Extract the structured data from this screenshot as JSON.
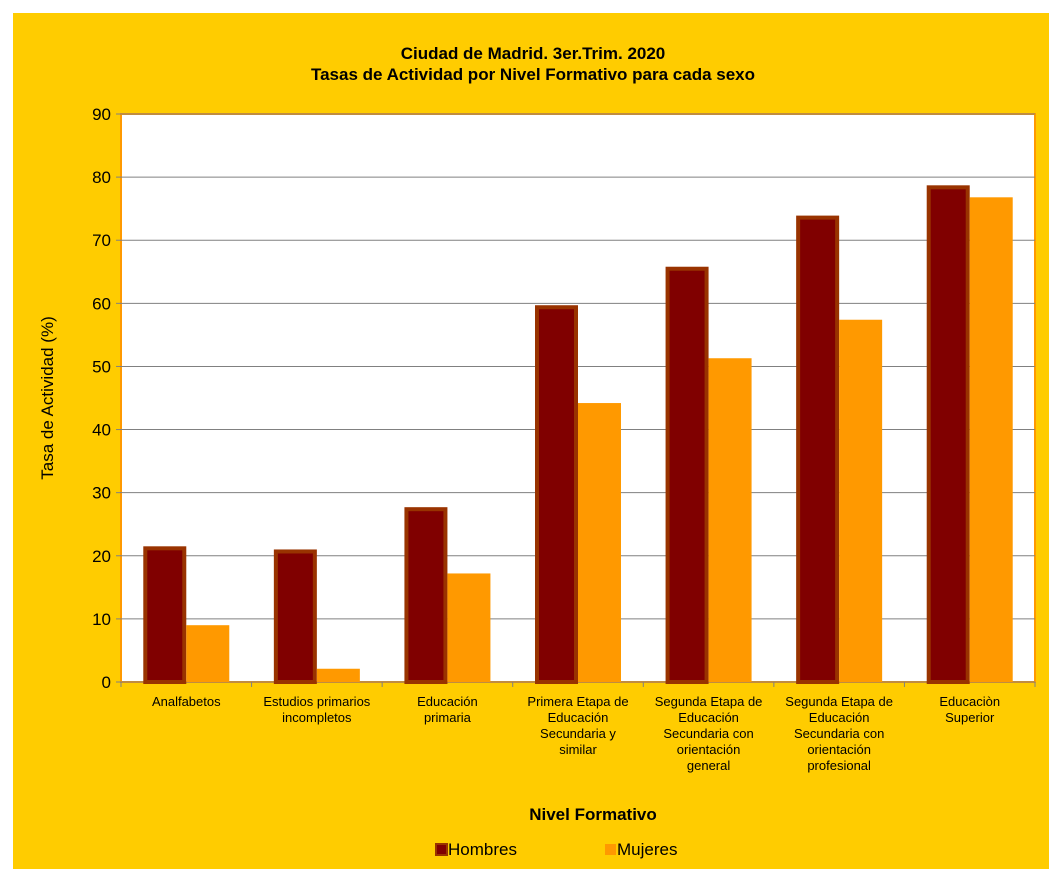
{
  "chart_data": {
    "type": "bar",
    "title": [
      "Ciudad de Madrid. 3er.Trim. 2020",
      "Tasas de Actividad por Nivel Formativo para cada sexo"
    ],
    "xlabel": "Nivel Formativo",
    "ylabel": "Tasa de Actividad (%)",
    "ylim": [
      0,
      90
    ],
    "yticks": [
      0,
      10,
      20,
      30,
      40,
      50,
      60,
      70,
      80,
      90
    ],
    "grid": true,
    "legend_position": "bottom",
    "categories": [
      [
        "Analfabetos"
      ],
      [
        "Estudios primarios",
        "incompletos"
      ],
      [
        "Educación",
        "primaria"
      ],
      [
        "Primera Etapa de",
        "Educación",
        "Secundaria y",
        "similar"
      ],
      [
        "Segunda Etapa de",
        "Educación",
        "Secundaria con",
        "orientación",
        "general"
      ],
      [
        "Segunda Etapa de",
        "Educación",
        "Secundaria con",
        "orientación",
        "profesional"
      ],
      [
        "Educaciòn",
        "Superior"
      ]
    ],
    "series": [
      {
        "name": "Hombres",
        "color": "#800000",
        "border": "#993300",
        "values": [
          21.5,
          21.0,
          27.7,
          59.7,
          65.8,
          73.9,
          78.7
        ]
      },
      {
        "name": "Mujeres",
        "color": "#FF9900",
        "values": [
          9.0,
          2.1,
          17.2,
          44.2,
          51.3,
          57.4,
          76.8
        ]
      }
    ],
    "colors": {
      "background": "#FFCC00",
      "plot_background": "#FFFFFF",
      "plot_border": "#FF9900",
      "gridline": "#808080"
    }
  }
}
